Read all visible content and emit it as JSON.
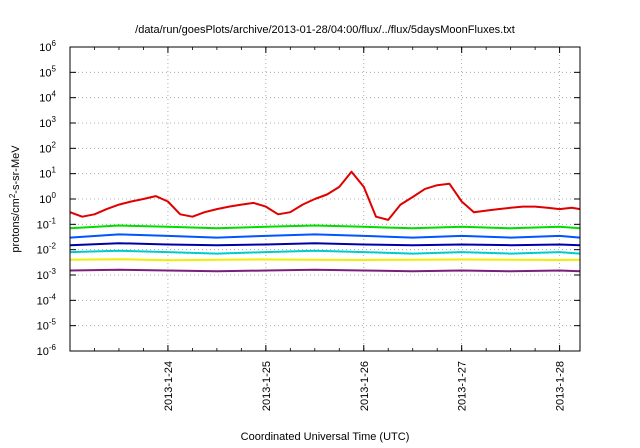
{
  "chart_data": {
    "type": "line",
    "title": "/data/run/goesPlots/archive/2013-01-28/04:00/flux/../flux/5daysMoonFluxes.txt",
    "xlabel": "Coordinated Universal Time (UTC)",
    "ylabel_parts": {
      "base": "protons/cm",
      "sup": "2",
      "rest": "-s-sr-MeV"
    },
    "y_scale": "log",
    "ylim": [
      1e-06,
      1000000.0
    ],
    "y_ticks": [
      {
        "value": 1e-06,
        "base": "10",
        "exp": "-6"
      },
      {
        "value": 1e-05,
        "base": "10",
        "exp": "-5"
      },
      {
        "value": 0.0001,
        "base": "10",
        "exp": "-4"
      },
      {
        "value": 0.001,
        "base": "10",
        "exp": "-3"
      },
      {
        "value": 0.01,
        "base": "10",
        "exp": "-2"
      },
      {
        "value": 0.1,
        "base": "10",
        "exp": "-1"
      },
      {
        "value": 1.0,
        "base": "10",
        "exp": "0"
      },
      {
        "value": 10.0,
        "base": "10",
        "exp": "1"
      },
      {
        "value": 100.0,
        "base": "10",
        "exp": "2"
      },
      {
        "value": 1000.0,
        "base": "10",
        "exp": "3"
      },
      {
        "value": 10000.0,
        "base": "10",
        "exp": "4"
      },
      {
        "value": 100000.0,
        "base": "10",
        "exp": "5"
      },
      {
        "value": 1000000.0,
        "base": "10",
        "exp": "6"
      }
    ],
    "xlim": [
      "2013-01-23 00:00",
      "2013-01-28 05:00"
    ],
    "x_ticks": [
      "2013-1-24",
      "2013-1-25",
      "2013-1-26",
      "2013-1-27",
      "2013-1-28"
    ],
    "grid": true,
    "legend": "none",
    "series": [
      {
        "color": "#e00000",
        "x": [
          "2013-01-23 00:00",
          "2013-01-23 03:00",
          "2013-01-23 06:00",
          "2013-01-23 09:00",
          "2013-01-23 12:00",
          "2013-01-23 15:00",
          "2013-01-23 18:00",
          "2013-01-23 21:00",
          "2013-01-24 00:00",
          "2013-01-24 03:00",
          "2013-01-24 06:00",
          "2013-01-24 09:00",
          "2013-01-24 12:00",
          "2013-01-24 15:00",
          "2013-01-24 18:00",
          "2013-01-24 21:00",
          "2013-01-25 00:00",
          "2013-01-25 03:00",
          "2013-01-25 06:00",
          "2013-01-25 09:00",
          "2013-01-25 12:00",
          "2013-01-25 15:00",
          "2013-01-25 18:00",
          "2013-01-25 21:00",
          "2013-01-26 00:00",
          "2013-01-26 03:00",
          "2013-01-26 06:00",
          "2013-01-26 09:00",
          "2013-01-26 12:00",
          "2013-01-26 15:00",
          "2013-01-26 18:00",
          "2013-01-26 21:00",
          "2013-01-27 00:00",
          "2013-01-27 03:00",
          "2013-01-27 06:00",
          "2013-01-27 09:00",
          "2013-01-27 12:00",
          "2013-01-27 15:00",
          "2013-01-27 18:00",
          "2013-01-27 21:00",
          "2013-01-28 00:00",
          "2013-01-28 03:00",
          "2013-01-28 05:00"
        ],
        "y": [
          0.3,
          0.2,
          0.25,
          0.4,
          0.6,
          0.8,
          1.0,
          1.3,
          0.8,
          0.25,
          0.2,
          0.3,
          0.4,
          0.5,
          0.6,
          0.7,
          0.5,
          0.25,
          0.3,
          0.6,
          1.0,
          1.5,
          3.0,
          12.0,
          3.0,
          0.2,
          0.15,
          0.6,
          1.2,
          2.5,
          3.5,
          4.0,
          0.8,
          0.3,
          0.35,
          0.4,
          0.45,
          0.5,
          0.5,
          0.45,
          0.4,
          0.45,
          0.4
        ]
      },
      {
        "color": "#00dd00",
        "x": [
          "2013-01-23 00:00",
          "2013-01-23 12:00",
          "2013-01-24 00:00",
          "2013-01-24 12:00",
          "2013-01-25 00:00",
          "2013-01-25 12:00",
          "2013-01-26 00:00",
          "2013-01-26 12:00",
          "2013-01-27 00:00",
          "2013-01-27 12:00",
          "2013-01-28 00:00",
          "2013-01-28 05:00"
        ],
        "y": [
          0.07,
          0.09,
          0.08,
          0.07,
          0.08,
          0.09,
          0.08,
          0.07,
          0.08,
          0.07,
          0.08,
          0.07
        ]
      },
      {
        "color": "#0055ff",
        "x": [
          "2013-01-23 00:00",
          "2013-01-23 12:00",
          "2013-01-24 00:00",
          "2013-01-24 12:00",
          "2013-01-25 00:00",
          "2013-01-25 12:00",
          "2013-01-26 00:00",
          "2013-01-26 12:00",
          "2013-01-27 00:00",
          "2013-01-27 12:00",
          "2013-01-28 00:00",
          "2013-01-28 05:00"
        ],
        "y": [
          0.03,
          0.04,
          0.035,
          0.03,
          0.035,
          0.04,
          0.035,
          0.03,
          0.035,
          0.03,
          0.035,
          0.03
        ]
      },
      {
        "color": "#0000aa",
        "x": [
          "2013-01-23 00:00",
          "2013-01-23 12:00",
          "2013-01-24 00:00",
          "2013-01-24 12:00",
          "2013-01-25 00:00",
          "2013-01-25 12:00",
          "2013-01-26 00:00",
          "2013-01-26 12:00",
          "2013-01-27 00:00",
          "2013-01-27 12:00",
          "2013-01-28 00:00",
          "2013-01-28 05:00"
        ],
        "y": [
          0.015,
          0.018,
          0.016,
          0.015,
          0.016,
          0.018,
          0.016,
          0.015,
          0.016,
          0.015,
          0.016,
          0.015
        ]
      },
      {
        "color": "#00cccc",
        "x": [
          "2013-01-23 00:00",
          "2013-01-23 12:00",
          "2013-01-24 00:00",
          "2013-01-24 12:00",
          "2013-01-25 00:00",
          "2013-01-25 12:00",
          "2013-01-26 00:00",
          "2013-01-26 12:00",
          "2013-01-27 00:00",
          "2013-01-27 12:00",
          "2013-01-28 00:00",
          "2013-01-28 05:00"
        ],
        "y": [
          0.008,
          0.009,
          0.008,
          0.007,
          0.008,
          0.009,
          0.008,
          0.007,
          0.008,
          0.007,
          0.008,
          0.007
        ]
      },
      {
        "color": "#eeee00",
        "x": [
          "2013-01-23 00:00",
          "2013-01-23 12:00",
          "2013-01-24 00:00",
          "2013-01-24 12:00",
          "2013-01-25 00:00",
          "2013-01-25 12:00",
          "2013-01-26 00:00",
          "2013-01-26 12:00",
          "2013-01-27 00:00",
          "2013-01-27 12:00",
          "2013-01-28 00:00",
          "2013-01-28 05:00"
        ],
        "y": [
          0.004,
          0.0042,
          0.0038,
          0.004,
          0.0041,
          0.004,
          0.0039,
          0.004,
          0.0041,
          0.004,
          0.0039,
          0.004
        ]
      },
      {
        "color": "#7a1f7a",
        "x": [
          "2013-01-23 00:00",
          "2013-01-23 12:00",
          "2013-01-24 00:00",
          "2013-01-24 12:00",
          "2013-01-25 00:00",
          "2013-01-25 12:00",
          "2013-01-26 00:00",
          "2013-01-26 12:00",
          "2013-01-27 00:00",
          "2013-01-27 12:00",
          "2013-01-28 00:00",
          "2013-01-28 05:00"
        ],
        "y": [
          0.0015,
          0.0016,
          0.0015,
          0.0014,
          0.0015,
          0.0016,
          0.0015,
          0.0014,
          0.0015,
          0.0014,
          0.0015,
          0.0014
        ]
      }
    ]
  }
}
